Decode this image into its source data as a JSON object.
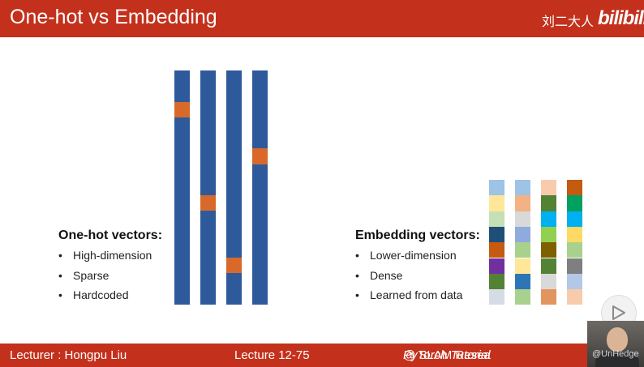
{
  "slide": {
    "title": "One-hot vs Embedding",
    "brand_cn": "刘二大人",
    "brand_logo": "bilibili"
  },
  "colors": {
    "accent_red": "#c3311c",
    "onehot_blue": "#2e5a9c",
    "onehot_orange": "#d9692b"
  },
  "onehot": {
    "heading": "One-hot vectors:",
    "bullets": [
      "High-dimension",
      "Sparse",
      "Hardcoded"
    ],
    "vectors": [
      {
        "hot_index": 2
      },
      {
        "hot_index": 8
      },
      {
        "hot_index": 12
      },
      {
        "hot_index": 5
      }
    ],
    "length": 15
  },
  "embedding": {
    "heading": "Embedding vectors:",
    "bullets": [
      "Lower-dimension",
      "Dense",
      "Learned from data"
    ],
    "vectors": [
      [
        "#9dc3e6",
        "#ffe699",
        "#c5e0b4",
        "#1f4e79",
        "#c55a11",
        "#7030a0",
        "#548235",
        "#d6dce5"
      ],
      [
        "#9dc3e6",
        "#f4b183",
        "#d9d9d9",
        "#8faadc",
        "#a9d18e",
        "#ffe699",
        "#2e75b6",
        "#a9d18e"
      ],
      [
        "#f8cbad",
        "#548235",
        "#00b0f0",
        "#92d050",
        "#7f6000",
        "#548235",
        "#d9d9d9",
        "#e2955f"
      ],
      [
        "#c55a11",
        "#00a060",
        "#00b0f0",
        "#ffd966",
        "#a9d18e",
        "#7f7f7f",
        "#b4c7e7",
        "#f8cbad"
      ]
    ]
  },
  "footer": {
    "lecturer": "Lecturer : Hongpu Liu",
    "lecture": "Lecture 12-75",
    "course_italic": "PyTorch Tutorial",
    "course_rest": " @ SLAM Resea"
  },
  "overlay": {
    "watermark": "@UnHedge"
  }
}
